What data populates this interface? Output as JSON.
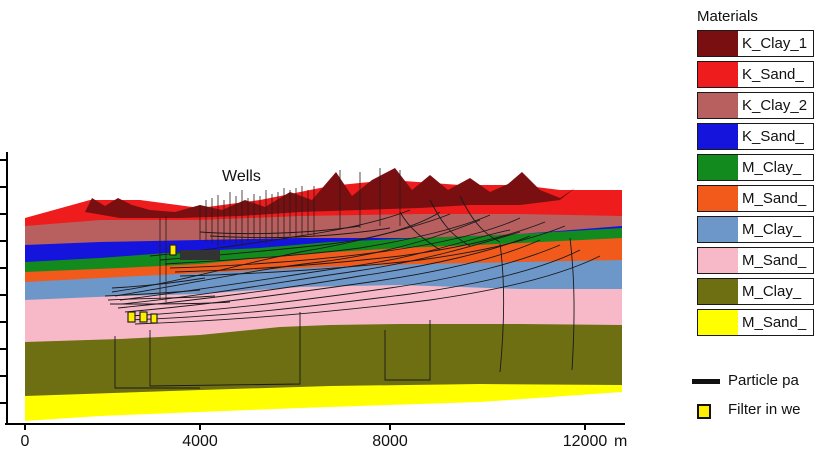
{
  "figure": {
    "wells_label": "Wells",
    "x_axis": {
      "ticks": [
        "0",
        "4000",
        "8000",
        "12000"
      ],
      "unit": "m"
    }
  },
  "legend": {
    "title": "Materials",
    "items": [
      {
        "label": "K_Clay_1",
        "color": "#7a0f12"
      },
      {
        "label": "K_Sand_",
        "color": "#ee1c1c"
      },
      {
        "label": "K_Clay_2",
        "color": "#b85f5f"
      },
      {
        "label": "K_Sand_",
        "color": "#1414dd"
      },
      {
        "label": "M_Clay_",
        "color": "#138a1d"
      },
      {
        "label": "M_Sand_",
        "color": "#f15a1a"
      },
      {
        "label": "M_Clay_",
        "color": "#6e97c9"
      },
      {
        "label": "M_Sand_",
        "color": "#f7b8c8"
      },
      {
        "label": "M_Clay_",
        "color": "#6e6e12"
      },
      {
        "label": "M_Sand_",
        "color": "#ffff00"
      }
    ],
    "particle_label": "Particle pa",
    "filter_label": "Filter in we"
  }
}
